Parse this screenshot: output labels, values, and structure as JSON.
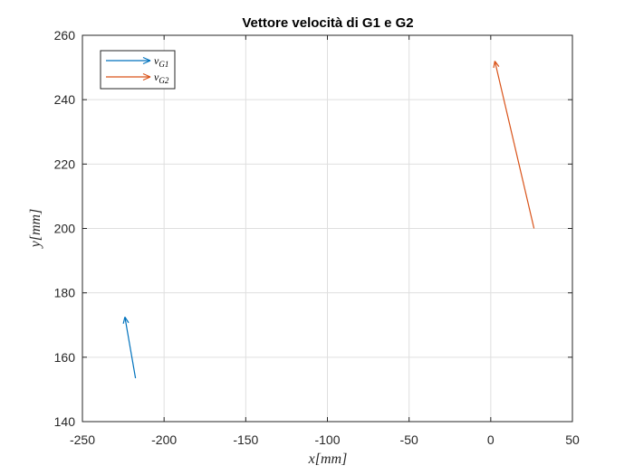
{
  "chart_data": {
    "type": "quiver",
    "title": "Vettore velocità di G1 e G2",
    "xlabel": "x[mm]",
    "ylabel": "y[mm]",
    "xlim": [
      -250,
      50
    ],
    "ylim": [
      140,
      260
    ],
    "x_ticks": [
      -250,
      -200,
      -150,
      -100,
      -50,
      0,
      50
    ],
    "y_ticks": [
      140,
      160,
      180,
      200,
      220,
      240,
      260
    ],
    "grid": true,
    "legend_position": "top-left",
    "series": [
      {
        "name": "v_{G1}",
        "legend_main": "v",
        "legend_sub": "G1",
        "color": "#0072BD",
        "x": -217.5,
        "y": 153.5,
        "u": -6.5,
        "v": 19
      },
      {
        "name": "v_{G2}",
        "legend_main": "v",
        "legend_sub": "G2",
        "color": "#D95319",
        "x": 26.5,
        "y": 200,
        "u": -24,
        "v": 52
      }
    ]
  }
}
